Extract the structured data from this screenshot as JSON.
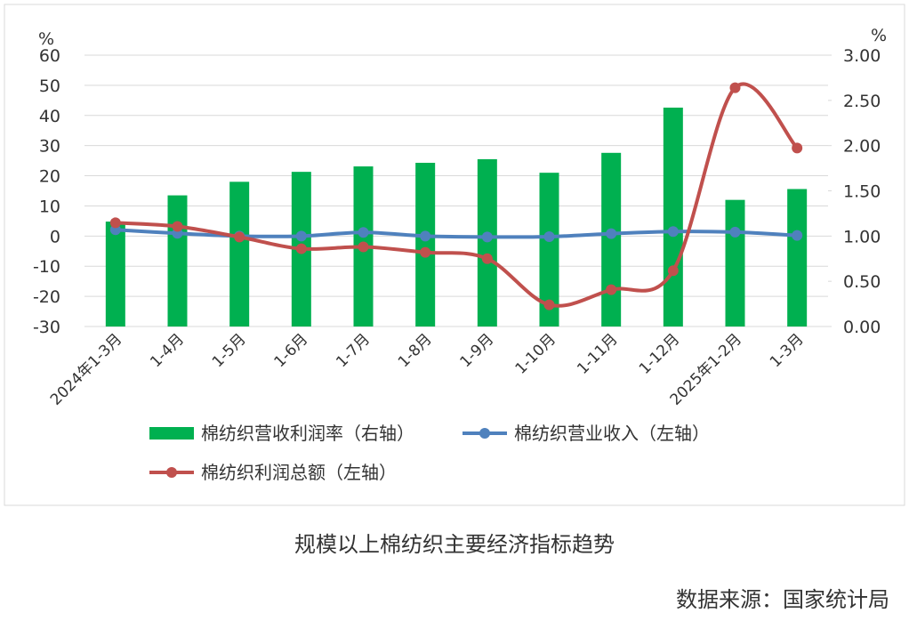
{
  "chart_data": {
    "type": "bar-line",
    "y_unit": "%",
    "y2_unit": "%",
    "categories": [
      "2024年1-3月",
      "1-4月",
      "1-5月",
      "1-6月",
      "1-7月",
      "1-8月",
      "1-9月",
      "1-10月",
      "1-11月",
      "1-12月",
      "2025年1-2月",
      "1-3月"
    ],
    "series": [
      {
        "name": "棉纺织营收利润率（右轴）",
        "type": "bar",
        "axis": "y2",
        "color": "#00b050",
        "values": [
          1.16,
          1.45,
          1.6,
          1.71,
          1.77,
          1.81,
          1.85,
          1.7,
          1.92,
          2.42,
          1.4,
          1.52
        ]
      },
      {
        "name": "棉纺织营业收入（左轴）",
        "type": "line",
        "color": "#4f81bd",
        "values": [
          2.1,
          0.9,
          0,
          0,
          1.2,
          0,
          -0.3,
          -0.2,
          0.8,
          1.5,
          1.3,
          0.2
        ]
      },
      {
        "name": "棉纺织利润总额（左轴）",
        "type": "line",
        "color": "#c0504d",
        "values": [
          4.4,
          3.2,
          -0.3,
          -4.2,
          -3.6,
          -5.4,
          -7.5,
          -22.8,
          -17.8,
          -11.5,
          49.2,
          29.2
        ]
      }
    ],
    "ylim": [
      -30,
      60
    ],
    "yticks": [
      60,
      50,
      40,
      30,
      20,
      10,
      0,
      -10,
      -20,
      -30
    ],
    "y2lim": [
      0,
      3
    ],
    "y2ticks": [
      {
        "value": 3,
        "label": "3.00"
      },
      {
        "value": 2.5,
        "label": "2.50"
      },
      {
        "value": 2,
        "label": "2.00"
      },
      {
        "value": 1.5,
        "label": "1.50"
      },
      {
        "value": 1,
        "label": "1.00"
      },
      {
        "value": 0.5,
        "label": "0.50"
      },
      {
        "value": 0,
        "label": "0.00"
      }
    ],
    "grid": true
  },
  "caption": "规模以上棉纺织主要经济指标趋势",
  "source": "数据来源：国家统计局"
}
